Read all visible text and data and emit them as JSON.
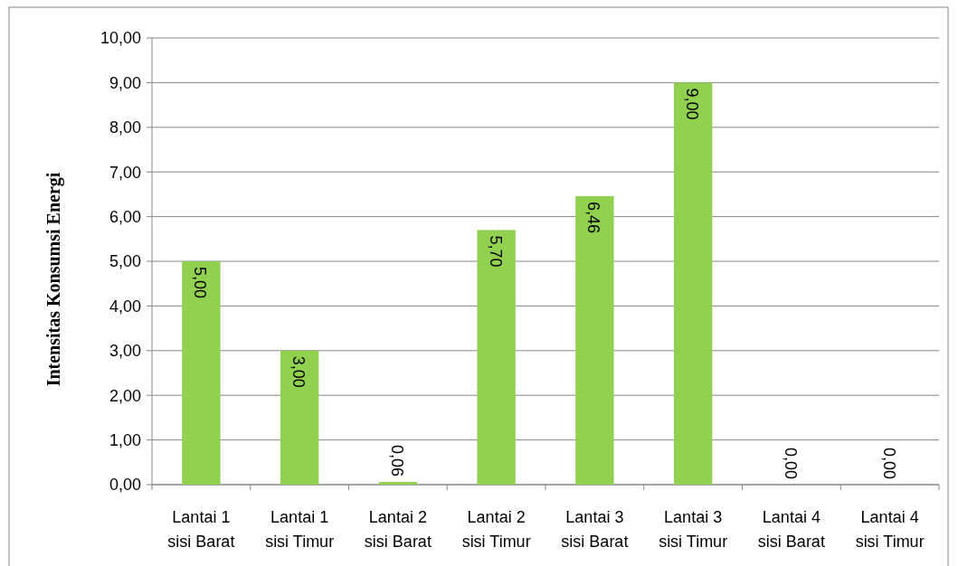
{
  "chart_data": {
    "type": "bar",
    "ylabel": "Intensitas Konsumsi Energi",
    "categories": [
      "Lantai 1 sisi Barat",
      "Lantai 1 sisi Timur",
      "Lantai 2 sisi Barat",
      "Lantai 2 sisi Timur",
      "Lantai 3 sisi Barat",
      "Lantai 3 sisi Timur",
      "Lantai 4 sisi Barat",
      "Lantai 4 sisi Timur"
    ],
    "values": [
      5.0,
      3.0,
      0.06,
      5.7,
      6.46,
      9.0,
      0.0,
      0.0
    ],
    "value_labels": [
      "5,00",
      "3,00",
      "0,06",
      "5,70",
      "6,46",
      "9,00",
      "0,00",
      "0,00"
    ],
    "color": "#92d050",
    "ylim": [
      0,
      10
    ],
    "yticks": [
      {
        "value": 0,
        "label": "0,00"
      },
      {
        "value": 1,
        "label": "1,00"
      },
      {
        "value": 2,
        "label": "2,00"
      },
      {
        "value": 3,
        "label": "3,00"
      },
      {
        "value": 4,
        "label": "4,00"
      },
      {
        "value": 5,
        "label": "5,00"
      },
      {
        "value": 6,
        "label": "6,00"
      },
      {
        "value": 7,
        "label": "7,00"
      },
      {
        "value": 8,
        "label": "8,00"
      },
      {
        "value": 9,
        "label": "9,00"
      },
      {
        "value": 10,
        "label": "10,00"
      }
    ],
    "grid": "y"
  }
}
